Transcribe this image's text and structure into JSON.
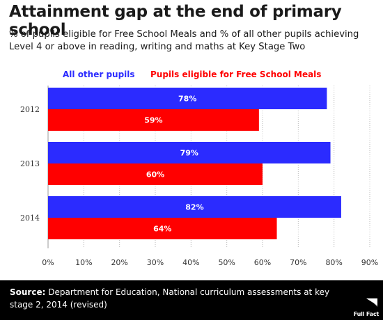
{
  "title": "Attainment gap at the end of primary school",
  "subtitle": "% of pupils eligible for Free School Meals and % of all other pupils achieving Level 4 or above in reading, writing and maths at Key Stage Two",
  "source": {
    "label": "Source:",
    "text": "Department for Education, National curriculum assessments at key stage 2, 2014 (revised)"
  },
  "logo_text": "Full Fact",
  "chart_data": {
    "type": "bar",
    "orientation": "horizontal",
    "categories": [
      "2012",
      "2013",
      "2014"
    ],
    "series": [
      {
        "name": "All other pupils",
        "values": [
          78,
          79,
          82
        ],
        "labels": [
          "78%",
          "79%",
          "82%"
        ],
        "color": "#2b2bff"
      },
      {
        "name": "Pupils eligible for Free School Meals",
        "values": [
          59,
          60,
          64
        ],
        "labels": [
          "59%",
          "60%",
          "64%"
        ],
        "color": "#ff0000"
      }
    ],
    "xlim": [
      0,
      90
    ],
    "xticks": [
      "0%",
      "10%",
      "20%",
      "30%",
      "40%",
      "50%",
      "60%",
      "70%",
      "80%",
      "90%"
    ],
    "grid": true,
    "legend_position": "top"
  }
}
